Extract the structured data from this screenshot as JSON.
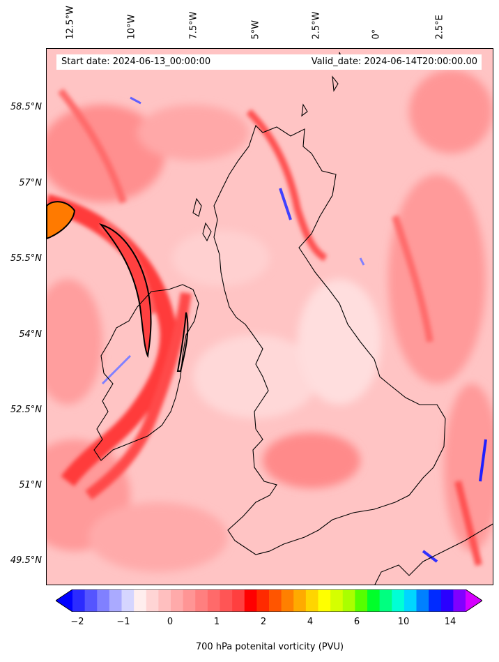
{
  "header": {
    "start_date": "Start date: 2024-06-13_00:00:00",
    "valid_date": "Valid_date: 2024-06-14T20:00:00.00"
  },
  "lon_labels": [
    "12.5°W",
    "10°W",
    "7.5°W",
    "5°W",
    "2.5°W",
    "0°",
    "2.5°E"
  ],
  "lat_labels": [
    "58.5°N",
    "57°N",
    "55.5°N",
    "54°N",
    "52.5°N",
    "51°N",
    "49.5°N"
  ],
  "colorbar": {
    "label": "700 hPa potenital vorticity (PVU)",
    "ticks": [
      "−2",
      "−1",
      "0",
      "1",
      "2",
      "4",
      "6",
      "10",
      "14"
    ],
    "colors": [
      "#0000ff",
      "#2b2bff",
      "#5555ff",
      "#8080ff",
      "#aaaaff",
      "#d5d5ff",
      "#ffeeee",
      "#ffd5d5",
      "#ffbfbf",
      "#ffaaaa",
      "#ff9595",
      "#ff7f7f",
      "#ff6a6a",
      "#ff5555",
      "#ff3f3f",
      "#ff0000",
      "#ff2a00",
      "#ff5500",
      "#ff8000",
      "#ffaa00",
      "#ffd500",
      "#ffff00",
      "#d5ff00",
      "#aaff00",
      "#55ff00",
      "#00ff2a",
      "#00ff80",
      "#00ffd5",
      "#00d5ff",
      "#0080ff",
      "#002bff",
      "#2a00ff",
      "#8000ff",
      "#d500ff"
    ]
  },
  "colors": {
    "background_field": "#ffc7c7",
    "strong_band": "#ff4040",
    "negative": "#3030ff",
    "contour": "#000000"
  }
}
